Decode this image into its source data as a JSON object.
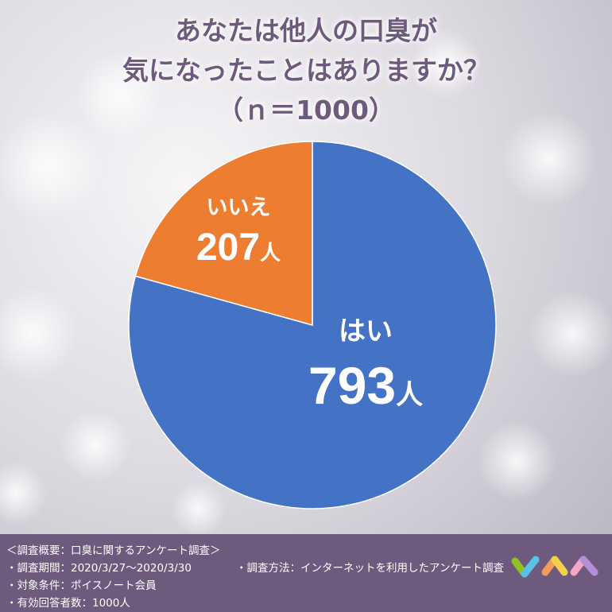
{
  "title": {
    "line1": "あなたは他人の口臭が",
    "line2": "気になったことはありますか？",
    "line3": "（ｎ＝1000）"
  },
  "chart_data": {
    "type": "pie",
    "total": 1000,
    "slices": [
      {
        "label": "はい",
        "value": 793,
        "display": "793",
        "unit": "人",
        "color": "#4472c4"
      },
      {
        "label": "いいえ",
        "value": 207,
        "display": "207",
        "unit": "人",
        "color": "#ed7d31"
      }
    ]
  },
  "footer": {
    "line1": "＜調査概要：口臭に関するアンケート調査＞",
    "line2a": "・調査期間：2020/3/27〜2020/3/30",
    "line2b": "・調査方法：インターネットを利用したアンケート調査",
    "line3": "・対象条件：ポイスノート会員",
    "line4": "・有効回答者数：1000人"
  },
  "logo": {
    "name": "logo-icon",
    "colors": [
      "#8fc31f",
      "#5bc2e7",
      "#f39c5a",
      "#f3d04a",
      "#f4a6c8",
      "#b48fd6"
    ]
  },
  "background": {
    "base": "#d8d5dd"
  }
}
